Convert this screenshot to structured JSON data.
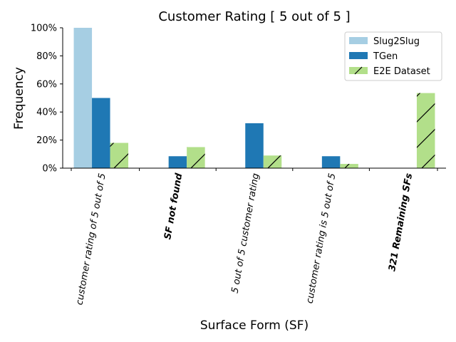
{
  "chart_data": {
    "type": "bar",
    "title": "Customer Rating [ 5 out of 5 ]",
    "xlabel": "Surface Form (SF)",
    "ylabel": "Frequency",
    "ylim": [
      0,
      100
    ],
    "yticks": [
      "0%",
      "20%",
      "40%",
      "60%",
      "80%",
      "100%"
    ],
    "categories": [
      "customer rating of 5 out of 5",
      "SF not found",
      "5 out of 5 customer rating",
      "customer rating is 5 out of 5",
      "321 Remaining SFs"
    ],
    "bold_categories": [
      false,
      true,
      false,
      false,
      true
    ],
    "series": [
      {
        "name": "Slug2Slug",
        "color": "#a6cee3",
        "hatch": false,
        "values": [
          100,
          0,
          0,
          0,
          0
        ]
      },
      {
        "name": "TGen",
        "color": "#1f78b4",
        "hatch": false,
        "values": [
          50,
          8.5,
          32,
          8.5,
          0
        ]
      },
      {
        "name": "E2E Dataset",
        "color": "#b2df8a",
        "hatch": true,
        "values": [
          18,
          15,
          9,
          3,
          53.5
        ]
      }
    ],
    "legend_position": "top-right",
    "grid": false
  }
}
